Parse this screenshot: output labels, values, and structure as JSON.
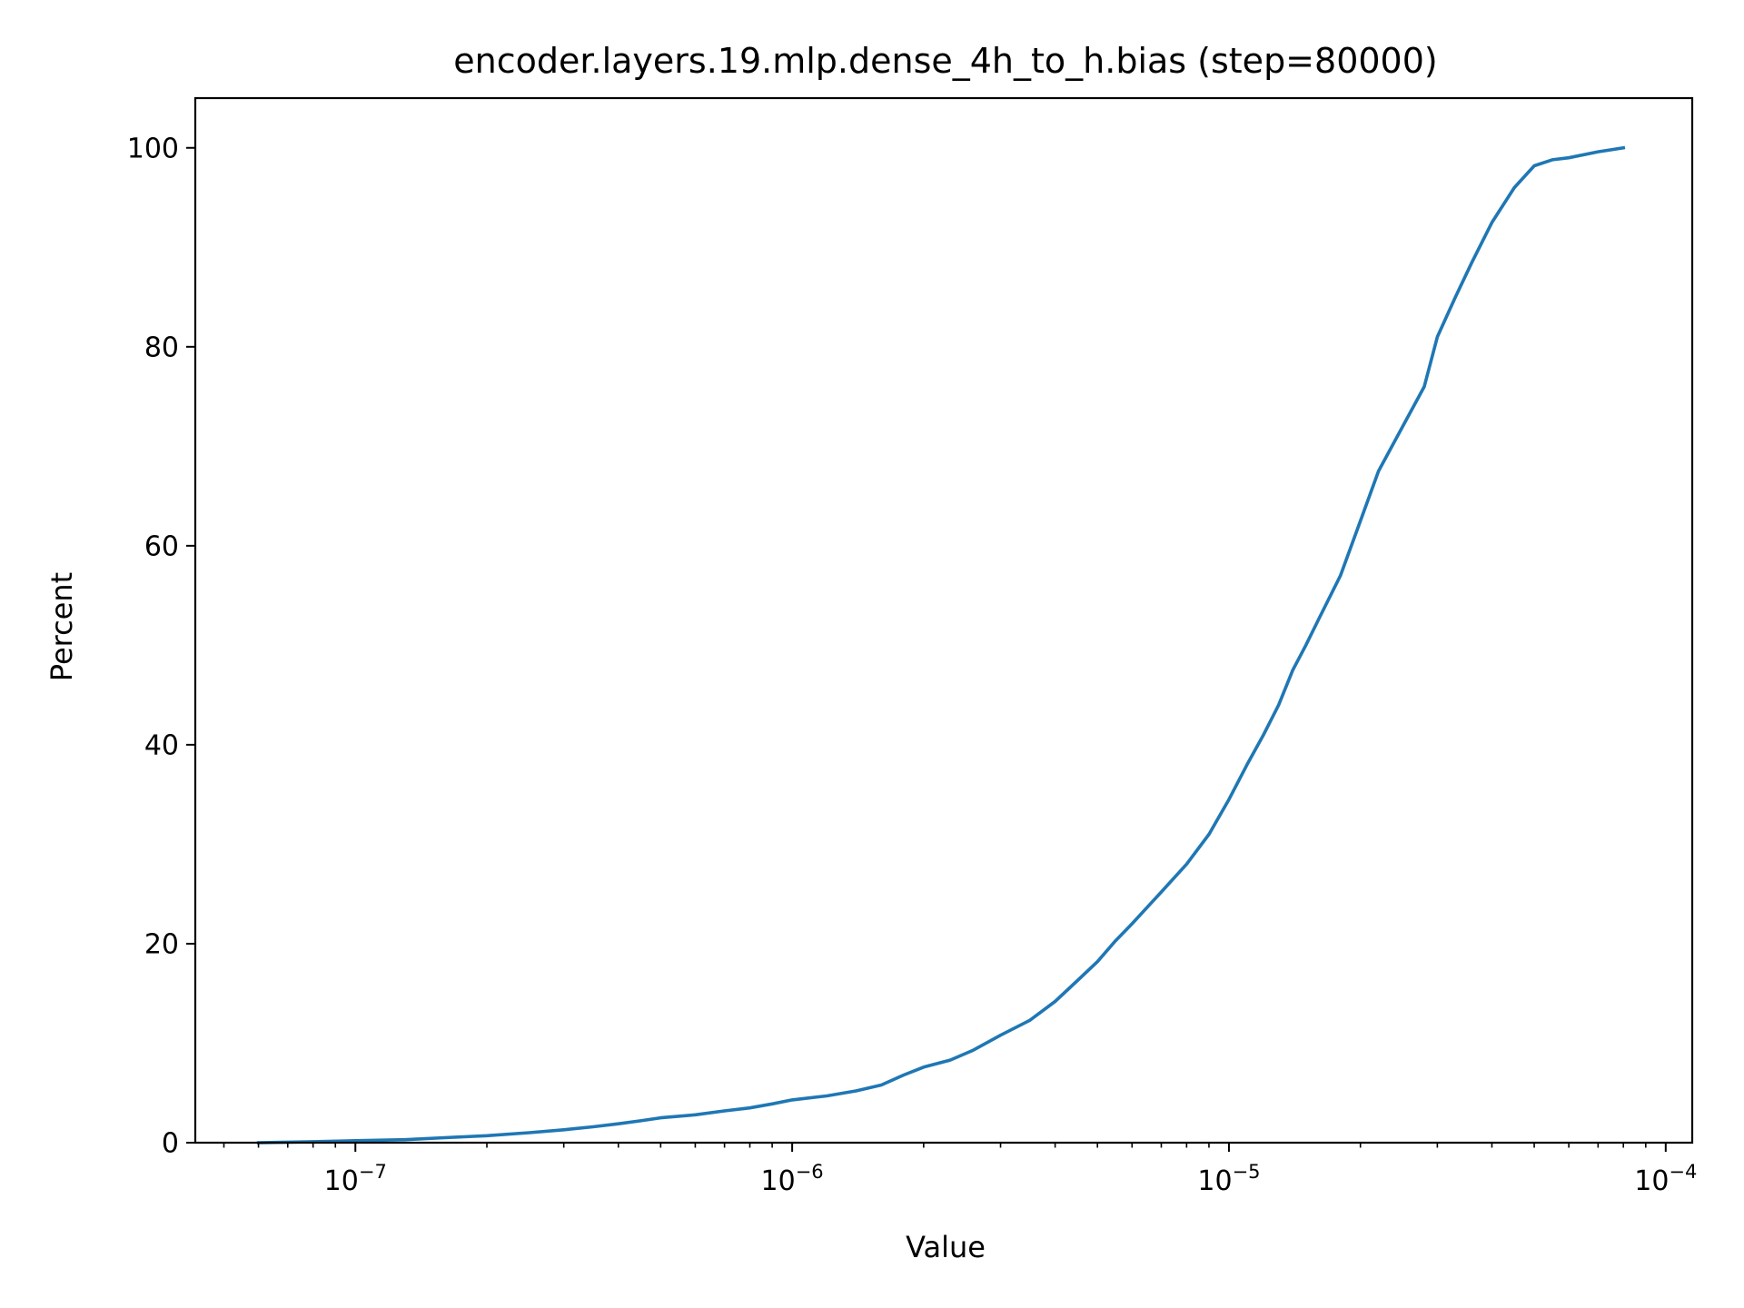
{
  "chart_data": {
    "type": "line",
    "title": "encoder.layers.19.mlp.dense_4h_to_h.bias (step=80000)",
    "xlabel": "Value",
    "ylabel": "Percent",
    "xscale": "log",
    "xlim": [
      4.3e-08,
      0.000115
    ],
    "ylim": [
      0,
      105
    ],
    "grid": false,
    "legend": "none",
    "xticks": [
      {
        "value": 1e-07,
        "mantissa": "10",
        "exponent": "−7"
      },
      {
        "value": 1e-06,
        "mantissa": "10",
        "exponent": "−6"
      },
      {
        "value": 1e-05,
        "mantissa": "10",
        "exponent": "−5"
      },
      {
        "value": 0.0001,
        "mantissa": "10",
        "exponent": "−4"
      }
    ],
    "yticks": [
      0,
      20,
      40,
      60,
      80,
      100
    ],
    "ytick_labels": [
      "0",
      "20",
      "40",
      "60",
      "80",
      "100"
    ],
    "series": [
      {
        "color": "#1f77b4",
        "x": [
          6e-08,
          8e-08,
          1e-07,
          1.3e-07,
          1.6e-07,
          2e-07,
          2.5e-07,
          3e-07,
          3.5e-07,
          4e-07,
          4.5e-07,
          5e-07,
          6e-07,
          7e-07,
          8e-07,
          9e-07,
          1e-06,
          1.2e-06,
          1.4e-06,
          1.6e-06,
          1.8e-06,
          2e-06,
          2.3e-06,
          2.6e-06,
          3e-06,
          3.5e-06,
          4e-06,
          4.5e-06,
          5e-06,
          5.5e-06,
          6e-06,
          7e-06,
          8e-06,
          9e-06,
          1e-05,
          1.1e-05,
          1.2e-05,
          1.3e-05,
          1.4e-05,
          1.5e-05,
          1.6e-05,
          1.8e-05,
          2e-05,
          2.2e-05,
          2.5e-05,
          2.8e-05,
          3e-05,
          3.3e-05,
          3.6e-05,
          4e-05,
          4.5e-05,
          5e-05,
          5.5e-05,
          6e-05,
          7e-05,
          8e-05
        ],
        "y": [
          0.0,
          0.1,
          0.2,
          0.3,
          0.5,
          0.7,
          1.0,
          1.3,
          1.6,
          1.9,
          2.2,
          2.5,
          2.8,
          3.2,
          3.5,
          3.9,
          4.3,
          4.7,
          5.2,
          5.8,
          6.8,
          7.6,
          8.3,
          9.3,
          10.8,
          12.3,
          14.2,
          16.3,
          18.2,
          20.3,
          22.0,
          25.2,
          28.0,
          31.0,
          34.5,
          38.0,
          41.0,
          44.0,
          47.5,
          50.0,
          52.5,
          57.0,
          62.5,
          67.5,
          72.0,
          76.0,
          81.0,
          85.0,
          88.5,
          92.5,
          96.0,
          98.2,
          98.8,
          99.0,
          99.6,
          100.0
        ]
      }
    ]
  }
}
